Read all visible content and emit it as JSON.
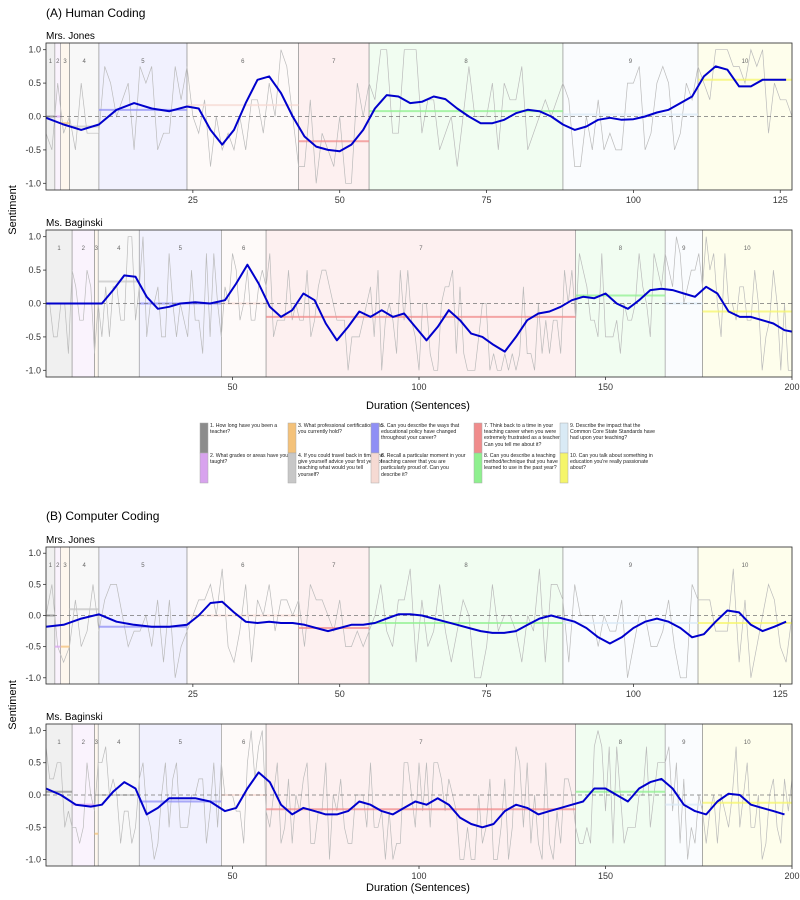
{
  "figure": {
    "y_axis_label": "Sentiment",
    "x_axis_label": "Duration (Sentences)"
  },
  "colors": {
    "smooth_line": "#0000cc",
    "raw_line": "#bbbbbb",
    "zero_line": "#777777",
    "q1": "#8c8c8c",
    "q2": "#d8a3ee",
    "q3": "#f4c27a",
    "q4": "#c7c7c7",
    "q5": "#8f8ff5",
    "q6": "#f6dad3",
    "q7": "#f08c8c",
    "q8": "#8ff08f",
    "q9": "#d9eaf5",
    "q10": "#f5f56a"
  },
  "legend": [
    {
      "key": "q1",
      "text": "1. How long have you been a teacher?"
    },
    {
      "key": "q2",
      "text": "2. What grades or areas have you taught?"
    },
    {
      "key": "q3",
      "text": "3. What professional certifications do you currently hold?"
    },
    {
      "key": "q4",
      "text": "4. If you could travel back in time and give yourself advice your first year of teaching what would you tell yourself?"
    },
    {
      "key": "q5",
      "text": "5. Can you describe the ways that educational policy have changed throughout your career?"
    },
    {
      "key": "q6",
      "text": "6. Recall a particular moment in your teaching career that you are particularly proud of. Can you describe it?"
    },
    {
      "key": "q7",
      "text": "7. Think back to a time in your teaching career when you were extremely frustrated as a teacher. Can you tell me about it?"
    },
    {
      "key": "q8",
      "text": "8. Can you describe a teaching method/technique that you have learned to use in the past year?"
    },
    {
      "key": "q9",
      "text": "9. Describe the impact that the Common Core State Standards have had upon your teaching?"
    },
    {
      "key": "q10",
      "text": "10. Can you talk about something in education you're really passionate about?"
    }
  ],
  "chart_data": [
    {
      "type": "line",
      "section_title": "(A) Human Coding",
      "panel_title": "Mrs. Jones",
      "xlim": [
        0,
        127
      ],
      "ylim": [
        -1.1,
        1.1
      ],
      "xticks": [
        25,
        50,
        75,
        100,
        125
      ],
      "yticks": [
        -1.0,
        -0.5,
        0.0,
        0.5,
        1.0
      ],
      "segments": [
        {
          "q": 1,
          "label": "1",
          "start": 0,
          "end": 1.5,
          "mean": 0.0
        },
        {
          "q": 2,
          "label": "2",
          "start": 1.5,
          "end": 2.5,
          "mean": 0.0
        },
        {
          "q": 3,
          "label": "3",
          "start": 2.5,
          "end": 4,
          "mean": -0.1
        },
        {
          "q": 4,
          "label": "4",
          "start": 4,
          "end": 9,
          "mean": -0.15
        },
        {
          "q": 5,
          "label": "5",
          "start": 9,
          "end": 24,
          "mean": 0.1
        },
        {
          "q": 6,
          "label": "6",
          "start": 24,
          "end": 43,
          "mean": 0.17
        },
        {
          "q": 7,
          "label": "7",
          "start": 43,
          "end": 55,
          "mean": -0.37
        },
        {
          "q": 8,
          "label": "8",
          "start": 55,
          "end": 88,
          "mean": 0.08
        },
        {
          "q": 9,
          "label": "9",
          "start": 88,
          "end": 111,
          "mean": 0.03
        },
        {
          "q": 10,
          "label": "10",
          "start": 111,
          "end": 127,
          "mean": 0.55
        }
      ],
      "smooth": {
        "x": [
          0,
          3,
          6,
          9,
          12,
          15,
          18,
          21,
          24,
          26,
          28,
          30,
          32,
          34,
          36,
          38,
          40,
          42,
          44,
          46,
          48,
          50,
          52,
          54,
          56,
          58,
          60,
          62,
          64,
          66,
          68,
          70,
          72,
          74,
          76,
          78,
          80,
          82,
          84,
          86,
          88,
          90,
          92,
          94,
          96,
          98,
          100,
          102,
          104,
          106,
          108,
          110,
          112,
          114,
          116,
          118,
          120,
          122,
          124,
          126
        ],
        "y": [
          -0.02,
          -0.12,
          -0.2,
          -0.12,
          0.1,
          0.2,
          0.12,
          0.08,
          0.15,
          0.12,
          -0.2,
          -0.42,
          -0.2,
          0.2,
          0.55,
          0.6,
          0.35,
          0.0,
          -0.3,
          -0.45,
          -0.5,
          -0.52,
          -0.42,
          -0.2,
          0.12,
          0.32,
          0.3,
          0.2,
          0.22,
          0.3,
          0.26,
          0.12,
          0.0,
          -0.1,
          -0.1,
          -0.05,
          0.05,
          0.1,
          0.08,
          0.0,
          -0.12,
          -0.2,
          -0.15,
          -0.05,
          -0.02,
          -0.05,
          -0.04,
          0.0,
          0.06,
          0.1,
          0.2,
          0.3,
          0.6,
          0.75,
          0.7,
          0.45,
          0.45,
          0.55,
          0.55,
          0.55
        ]
      },
      "raw_seed": 3
    },
    {
      "type": "line",
      "panel_title": "Ms. Baginski",
      "xlim": [
        0,
        200
      ],
      "ylim": [
        -1.1,
        1.1
      ],
      "xticks": [
        50,
        100,
        150,
        200
      ],
      "yticks": [
        -1.0,
        -0.5,
        0.0,
        0.5,
        1.0
      ],
      "segments": [
        {
          "q": 1,
          "label": "1",
          "start": 0,
          "end": 7,
          "mean": 0.0
        },
        {
          "q": 2,
          "label": "2",
          "start": 7,
          "end": 13,
          "mean": 0.0
        },
        {
          "q": 3,
          "label": "3",
          "start": 13,
          "end": 14,
          "mean": 0.0
        },
        {
          "q": 4,
          "label": "4",
          "start": 14,
          "end": 25,
          "mean": 0.33
        },
        {
          "q": 5,
          "label": "5",
          "start": 25,
          "end": 47,
          "mean": 0.0
        },
        {
          "q": 6,
          "label": "6",
          "start": 47,
          "end": 59,
          "mean": 0.0
        },
        {
          "q": 7,
          "label": "7",
          "start": 59,
          "end": 142,
          "mean": -0.2
        },
        {
          "q": 8,
          "label": "8",
          "start": 142,
          "end": 166,
          "mean": 0.12
        },
        {
          "q": 9,
          "label": "9",
          "start": 166,
          "end": 176,
          "mean": 0.0
        },
        {
          "q": 10,
          "label": "10",
          "start": 176,
          "end": 200,
          "mean": -0.12
        }
      ],
      "smooth": {
        "x": [
          0,
          10,
          15,
          18,
          21,
          24,
          27,
          30,
          33,
          36,
          40,
          44,
          48,
          51,
          54,
          57,
          60,
          63,
          66,
          69,
          72,
          75,
          78,
          81,
          84,
          87,
          90,
          93,
          96,
          99,
          102,
          105,
          108,
          111,
          114,
          117,
          120,
          123,
          126,
          129,
          132,
          135,
          138,
          141,
          144,
          147,
          150,
          153,
          156,
          159,
          162,
          165,
          168,
          171,
          174,
          177,
          180,
          183,
          186,
          189,
          192,
          195,
          198,
          200
        ],
        "y": [
          0.0,
          0.0,
          0.0,
          0.2,
          0.42,
          0.4,
          0.1,
          -0.08,
          -0.05,
          0.0,
          0.02,
          0.0,
          0.05,
          0.3,
          0.58,
          0.3,
          -0.05,
          -0.2,
          -0.1,
          0.15,
          0.05,
          -0.3,
          -0.55,
          -0.35,
          -0.12,
          -0.2,
          -0.1,
          -0.2,
          -0.15,
          -0.35,
          -0.55,
          -0.35,
          -0.1,
          -0.25,
          -0.45,
          -0.5,
          -0.62,
          -0.72,
          -0.5,
          -0.25,
          -0.15,
          -0.12,
          -0.05,
          0.05,
          0.1,
          0.08,
          0.15,
          0.0,
          -0.08,
          0.05,
          0.2,
          0.22,
          0.2,
          0.15,
          0.1,
          0.25,
          0.15,
          -0.12,
          -0.2,
          -0.2,
          -0.25,
          -0.3,
          -0.4,
          -0.42
        ]
      },
      "raw_seed": 7
    },
    {
      "type": "line",
      "section_title": "(B) Computer Coding",
      "panel_title": "Mrs. Jones",
      "xlim": [
        0,
        127
      ],
      "ylim": [
        -1.1,
        1.1
      ],
      "xticks": [
        25,
        50,
        75,
        100,
        125
      ],
      "yticks": [
        -1.0,
        -0.5,
        0.0,
        0.5,
        1.0
      ],
      "segments": [
        {
          "q": 1,
          "label": "1",
          "start": 0,
          "end": 1.5,
          "mean": 0.0
        },
        {
          "q": 2,
          "label": "2",
          "start": 1.5,
          "end": 2.5,
          "mean": -0.5
        },
        {
          "q": 3,
          "label": "3",
          "start": 2.5,
          "end": 4,
          "mean": -0.5
        },
        {
          "q": 4,
          "label": "4",
          "start": 4,
          "end": 9,
          "mean": 0.1
        },
        {
          "q": 5,
          "label": "5",
          "start": 9,
          "end": 24,
          "mean": -0.18
        },
        {
          "q": 6,
          "label": "6",
          "start": 24,
          "end": 43,
          "mean": 0.0
        },
        {
          "q": 7,
          "label": "7",
          "start": 43,
          "end": 55,
          "mean": -0.2
        },
        {
          "q": 8,
          "label": "8",
          "start": 55,
          "end": 88,
          "mean": -0.12
        },
        {
          "q": 9,
          "label": "9",
          "start": 88,
          "end": 111,
          "mean": -0.12
        },
        {
          "q": 10,
          "label": "10",
          "start": 111,
          "end": 127,
          "mean": -0.12
        }
      ],
      "smooth": {
        "x": [
          0,
          3,
          6,
          9,
          12,
          15,
          18,
          21,
          24,
          26,
          28,
          30,
          32,
          34,
          36,
          38,
          40,
          42,
          44,
          46,
          48,
          50,
          52,
          54,
          56,
          58,
          60,
          62,
          64,
          66,
          68,
          70,
          72,
          74,
          76,
          78,
          80,
          82,
          84,
          86,
          88,
          90,
          92,
          94,
          96,
          98,
          100,
          102,
          104,
          106,
          108,
          110,
          112,
          114,
          116,
          118,
          120,
          122,
          124,
          126
        ],
        "y": [
          -0.18,
          -0.15,
          -0.05,
          0.02,
          -0.1,
          -0.15,
          -0.18,
          -0.18,
          -0.15,
          0.0,
          0.2,
          0.22,
          0.05,
          -0.1,
          -0.12,
          -0.1,
          -0.12,
          -0.12,
          -0.15,
          -0.2,
          -0.25,
          -0.2,
          -0.15,
          -0.15,
          -0.12,
          -0.05,
          0.02,
          0.02,
          0.0,
          -0.05,
          -0.1,
          -0.15,
          -0.2,
          -0.25,
          -0.28,
          -0.28,
          -0.25,
          -0.15,
          -0.05,
          0.0,
          -0.05,
          -0.1,
          -0.2,
          -0.35,
          -0.45,
          -0.35,
          -0.2,
          -0.1,
          -0.05,
          -0.1,
          -0.2,
          -0.35,
          -0.3,
          -0.1,
          0.08,
          0.05,
          -0.15,
          -0.25,
          -0.18,
          -0.1
        ]
      },
      "raw_seed": 11
    },
    {
      "type": "line",
      "panel_title": "Ms. Baginski",
      "xlim": [
        0,
        200
      ],
      "ylim": [
        -1.1,
        1.1
      ],
      "xticks": [
        50,
        100,
        150,
        200
      ],
      "yticks": [
        -1.0,
        -0.5,
        0.0,
        0.5,
        1.0
      ],
      "segments": [
        {
          "q": 1,
          "label": "1",
          "start": 0,
          "end": 7,
          "mean": 0.05
        },
        {
          "q": 2,
          "label": "2",
          "start": 7,
          "end": 13,
          "mean": -0.15
        },
        {
          "q": 3,
          "label": "3",
          "start": 13,
          "end": 14,
          "mean": -0.6
        },
        {
          "q": 4,
          "label": "4",
          "start": 14,
          "end": 25,
          "mean": 0.0
        },
        {
          "q": 5,
          "label": "5",
          "start": 25,
          "end": 47,
          "mean": -0.1
        },
        {
          "q": 6,
          "label": "6",
          "start": 47,
          "end": 59,
          "mean": 0.0
        },
        {
          "q": 7,
          "label": "7",
          "start": 59,
          "end": 142,
          "mean": -0.22
        },
        {
          "q": 8,
          "label": "8",
          "start": 142,
          "end": 166,
          "mean": 0.05
        },
        {
          "q": 9,
          "label": "9",
          "start": 166,
          "end": 176,
          "mean": -0.15
        },
        {
          "q": 10,
          "label": "10",
          "start": 176,
          "end": 200,
          "mean": -0.12
        }
      ],
      "smooth": {
        "x": [
          0,
          4,
          8,
          12,
          15,
          18,
          21,
          24,
          27,
          30,
          33,
          36,
          40,
          44,
          48,
          51,
          54,
          57,
          60,
          63,
          66,
          69,
          72,
          75,
          78,
          81,
          84,
          87,
          90,
          93,
          96,
          99,
          102,
          105,
          108,
          111,
          114,
          117,
          120,
          123,
          126,
          129,
          132,
          135,
          138,
          141,
          144,
          147,
          150,
          153,
          156,
          159,
          162,
          165,
          168,
          171,
          174,
          177,
          180,
          183,
          186,
          189,
          192,
          195,
          198
        ],
        "y": [
          0.1,
          0.0,
          -0.15,
          -0.18,
          -0.15,
          0.05,
          0.2,
          0.1,
          -0.3,
          -0.2,
          -0.05,
          -0.05,
          -0.05,
          -0.1,
          -0.25,
          -0.2,
          0.1,
          0.35,
          0.2,
          -0.15,
          -0.3,
          -0.2,
          -0.25,
          -0.3,
          -0.3,
          -0.25,
          -0.1,
          -0.15,
          -0.25,
          -0.3,
          -0.2,
          -0.1,
          -0.15,
          -0.05,
          -0.15,
          -0.35,
          -0.45,
          -0.5,
          -0.45,
          -0.25,
          -0.15,
          -0.2,
          -0.3,
          -0.25,
          -0.2,
          -0.15,
          -0.1,
          0.1,
          0.1,
          0.0,
          -0.1,
          0.1,
          0.2,
          0.25,
          0.1,
          -0.15,
          -0.25,
          -0.3,
          -0.1,
          0.02,
          0.0,
          -0.15,
          -0.2,
          -0.25,
          -0.3
        ]
      },
      "raw_seed": 19
    }
  ]
}
